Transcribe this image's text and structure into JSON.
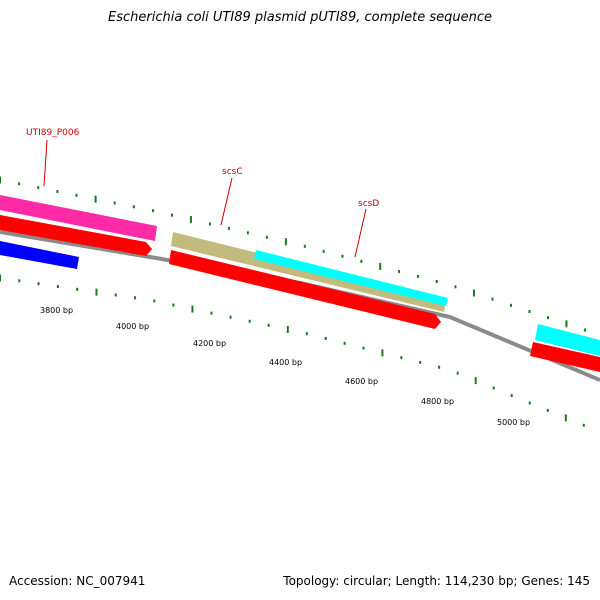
{
  "title": "Escherichia coli UTI89 plasmid pUTI89, complete sequence",
  "footer": {
    "accession": "Accession: NC_007941",
    "summary": "Topology: circular; Length: 114,230 bp; Genes: 145"
  },
  "scale_labels": [
    "3800 bp",
    "4000 bp",
    "4200 bp",
    "4400 bp",
    "4600 bp",
    "4800 bp",
    "5000 bp"
  ],
  "gene_labels": [
    "UTI89_P006",
    "scsC",
    "scsD"
  ],
  "colors": {
    "backbone": "#888888",
    "tick": "#1a7a1a",
    "magenta": "#ff2aa6",
    "red": "#ff0000",
    "blue": "#0000ff",
    "khaki": "#c2bb7e",
    "cyan": "#00ffff",
    "label_red": "#cc0000"
  }
}
